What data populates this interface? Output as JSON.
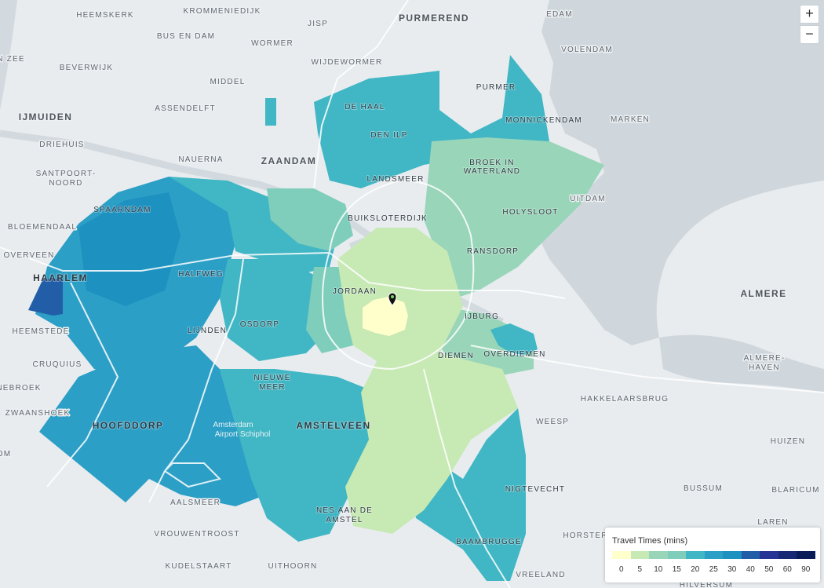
{
  "map": {
    "labels": {
      "heemskerk": "HEEMSKERK",
      "krommenie": "KROMMENIEDIJK",
      "purmerend": "PURMEREND",
      "edam": "EDAM",
      "bus_en_dam": "BUS EN DAM",
      "jisp": "JISP",
      "wormer": "WORMER",
      "volendam": "VOLENDAM",
      "beverwijk": "BEVERWIJK",
      "wijdewormer": "WIJDEWORMER",
      "n_zee": "N ZEE",
      "middel": "MIDDEL",
      "purmer": "PURMER",
      "assendelft": "ASSENDELFT",
      "de_haal": "DE HAAL",
      "ijmuiden": "IJMUIDEN",
      "monnickendam": "MONNICKENDAM",
      "marken": "MARKEN",
      "den_ilp": "DEN ILP",
      "driehuis": "DRIEHUIS",
      "nauerna": "NAUERNA",
      "zaandam": "ZAANDAM",
      "broek_1": "BROEK IN",
      "broek_2": "WATERLAND",
      "santpoort_1": "SANTPOORT-",
      "santpoort_2": "NOORD",
      "landsmeer": "LANDSMEER",
      "uitdam": "UITDAM",
      "spaarndam": "SPAARNDAM",
      "buiksloterdijk": "BUIKSLOTERDIJK",
      "holysloot": "HOLYSLOOT",
      "bloemendaal": "BLOEMENDAAL",
      "ransdorp": "RANSDORP",
      "overveen": "OVERVEEN",
      "halfweg": "HALFWEG",
      "haarlem": "HAARLEM",
      "jordaan": "JORDAAN",
      "almere": "ALMERE",
      "osdorp": "OSDORP",
      "ijburg": "IJBURG",
      "heemstede": "HEEMSTEDE",
      "lijnden": "LIJNDEN",
      "diemen": "DIEMEN",
      "overdiemen": "OVERDIEMEN",
      "almere_haven_1": "ALMERE-",
      "almere_haven_2": "HAVEN",
      "cruquius": "CRUQUIUS",
      "nieuwe_1": "NIEUWE",
      "nieuwe_2": "MEER",
      "nebroek": "NEBROEK",
      "hakkelaarsbrug": "HAKKELAARSBRUG",
      "zwaanshoek": "ZWAANSHOEK",
      "airport_1": "Amsterdam",
      "airport_2": "Airport Schiphol",
      "weesp": "WEESP",
      "hoofddorp": "HOOFDDORP",
      "amstelveen": "AMSTELVEEN",
      "huizen": "HUIZEN",
      "om": "OM",
      "nigtevecht": "NIGTEVECHT",
      "bussum": "BUSSUM",
      "blaricum": "BLARICUM",
      "aalsmeer": "AALSMEER",
      "nes_1": "NES AAN DE",
      "nes_2": "AMSTEL",
      "laren": "LAREN",
      "vrouwentroost": "VROUWENTROOST",
      "horster": "HORSTER",
      "baambrugge": "BAAMBRUGGE",
      "kudelstaart": "KUDELSTAART",
      "uithoorn": "UITHOORN",
      "vreeland": "VREELAND",
      "hilversum": "HILVERSUM"
    }
  },
  "controls": {
    "zoom_in": "+",
    "zoom_out": "−"
  },
  "legend": {
    "title": "Travel Times (mins)",
    "ticks": [
      "0",
      "5",
      "10",
      "15",
      "20",
      "25",
      "30",
      "40",
      "50",
      "60",
      "90"
    ],
    "colors": [
      "#ffffcc",
      "#c7e9b4",
      "#99d5b9",
      "#7fcdbb",
      "#41b6c4",
      "#2c9fc6",
      "#1d91c0",
      "#225ea8",
      "#253494",
      "#172975",
      "#081d58"
    ]
  }
}
